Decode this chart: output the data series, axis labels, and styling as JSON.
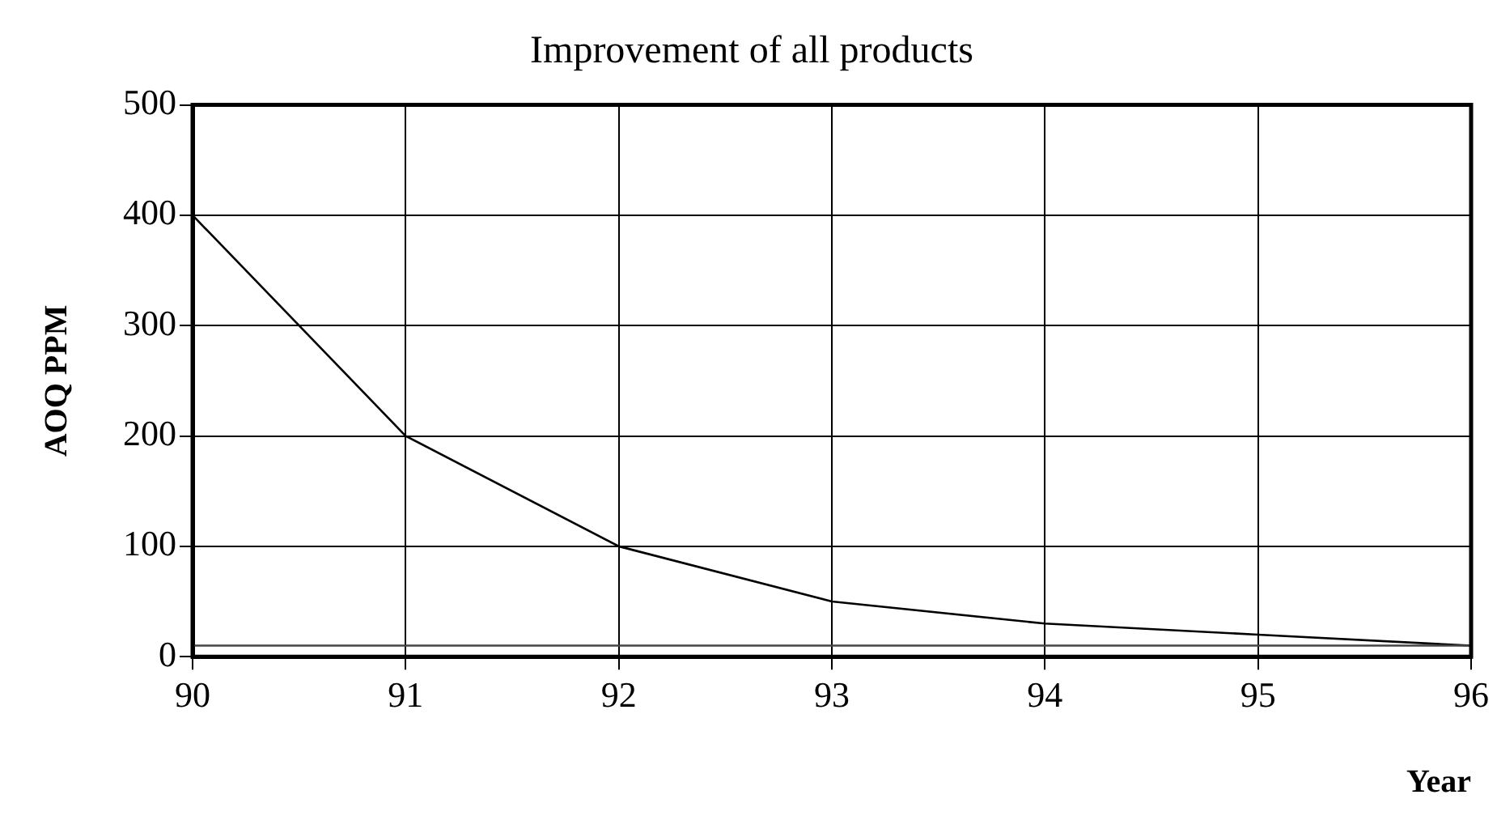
{
  "chart_data": {
    "type": "line",
    "title": "Improvement of all products",
    "xlabel": "Year",
    "ylabel": "AOQ PPM",
    "x": [
      90,
      91,
      92,
      93,
      94,
      95,
      96
    ],
    "series": [
      {
        "color": "#000000",
        "values": [
          400,
          200,
          100,
          50,
          30,
          20,
          10
        ]
      }
    ],
    "xlim": [
      90,
      96
    ],
    "xticks": [
      90,
      91,
      92,
      93,
      94,
      95,
      96
    ],
    "ylim": [
      0,
      500
    ],
    "yticks": [
      0,
      100,
      200,
      300,
      400,
      500
    ],
    "ref_lines": [
      {
        "axis": "y",
        "value": 10,
        "color": "#444444"
      }
    ],
    "grid": true,
    "legend": false,
    "marker": "none",
    "line_style": "solid"
  }
}
